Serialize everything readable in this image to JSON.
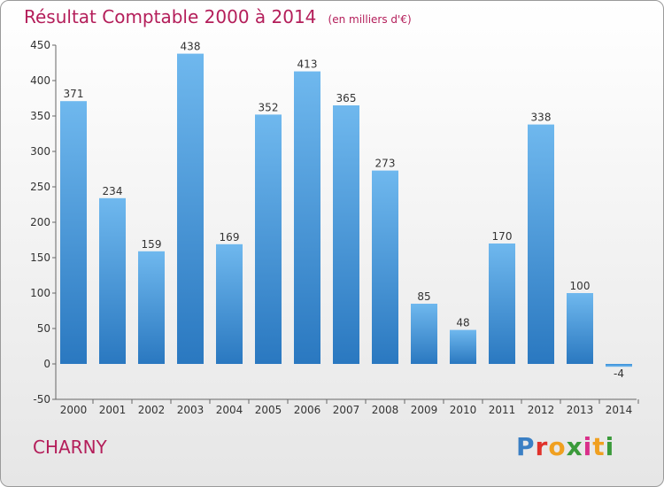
{
  "chart_data": {
    "type": "bar",
    "title": "Résultat Comptable 2000 à 2014",
    "unit": "(en milliers d'€)",
    "categories": [
      "2000",
      "2001",
      "2002",
      "2003",
      "2004",
      "2005",
      "2006",
      "2007",
      "2008",
      "2009",
      "2010",
      "2011",
      "2012",
      "2013",
      "2014"
    ],
    "values": [
      371,
      234,
      159,
      438,
      169,
      352,
      413,
      365,
      273,
      85,
      48,
      170,
      338,
      100,
      -4
    ],
    "ylim": [
      -50,
      450
    ],
    "yticks": [
      -50,
      0,
      50,
      100,
      150,
      200,
      250,
      300,
      350,
      400,
      450
    ],
    "grid": false,
    "legend": "none",
    "bar_color": "#3a8fd8"
  },
  "town": "CHARNY",
  "logo": {
    "text": "Proxiti",
    "letter_colors": [
      "#3a7fc4",
      "#e0322b",
      "#f0a020",
      "#3a9a3a",
      "#d9308a",
      "#f0a020",
      "#3a9a3a"
    ]
  }
}
